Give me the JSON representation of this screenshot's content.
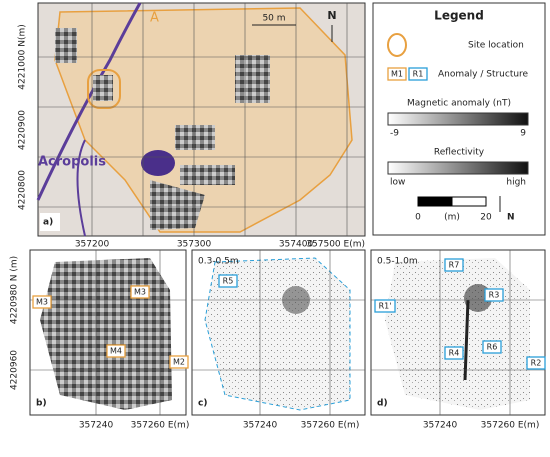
{
  "panel_a": {
    "label": "a)",
    "site_label": "A",
    "scale": "50 m",
    "north": "N",
    "acropolis": "Acropolis",
    "y_labels": [
      "4221000 N(m)",
      "4220900",
      "4220800"
    ],
    "x_labels": [
      "357200",
      "357300",
      "357400",
      "357500 E(m)"
    ]
  },
  "legend": {
    "title": "Legend",
    "site": "Site location",
    "anomaly_codes": [
      "M1",
      "R1"
    ],
    "anomaly": "Anomaly / Structure",
    "magnetic": "Magnetic anomaly (nT)",
    "mag_min": "-9",
    "mag_max": "9",
    "reflectivity": "Reflectivity",
    "refl_min": "low",
    "refl_max": "high",
    "scale_labels": [
      "0",
      "(m)",
      "20"
    ],
    "north": "N"
  },
  "panel_b": {
    "label": "b)",
    "y_labels": [
      "4220980 N (m)",
      "4220960"
    ],
    "x_labels": [
      "357240",
      "357260 E(m)"
    ],
    "tags": [
      "M3",
      "M3",
      "M4",
      "M2"
    ]
  },
  "panel_c": {
    "label": "c)",
    "depth": "0.3-0.5m",
    "x_labels": [
      "357240",
      "357260 E(m)"
    ],
    "tags": [
      "R5"
    ]
  },
  "panel_d": {
    "label": "d)",
    "depth": "0.5-1.0m",
    "x_labels": [
      "357240",
      "357260 E(m)"
    ],
    "tags": [
      "R7",
      "R3",
      "R1'",
      "R4",
      "R6",
      "R2"
    ]
  }
}
